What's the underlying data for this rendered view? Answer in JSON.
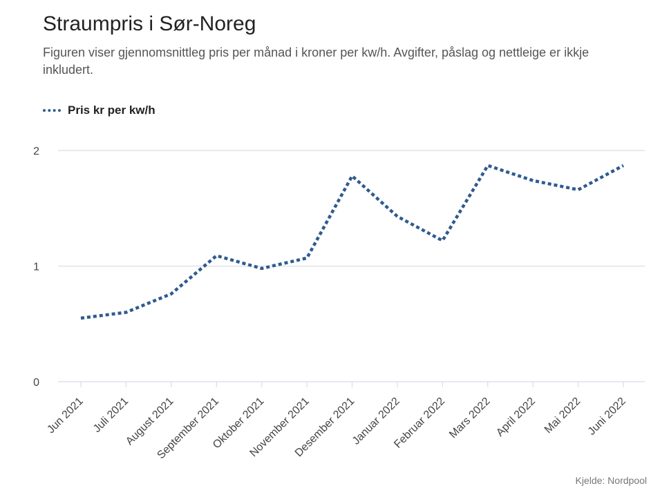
{
  "chart_data": {
    "type": "line",
    "title": "Straumpris i Sør-Noreg",
    "subtitle": "Figuren viser gjennomsnittleg pris per månad i kroner per kw/h. Avgifter, påslag og nettleige er ikkje inkludert.",
    "legend": "Pris kr per kw/h",
    "source": "Kjelde: Nordpool",
    "categories": [
      "Jun 2021",
      "Juli 2021",
      "August 2021",
      "September 2021",
      "Oktober 2021",
      "November 2021",
      "Desember 2021",
      "Januar 2022",
      "Februar 2022",
      "Mars 2022",
      "April 2022",
      "Mai 2022",
      "Juni 2022"
    ],
    "series": [
      {
        "name": "Pris kr per kw/h",
        "values": [
          0.55,
          0.6,
          0.76,
          1.09,
          0.98,
          1.07,
          1.78,
          1.43,
          1.22,
          1.87,
          1.74,
          1.66,
          1.87
        ]
      }
    ],
    "ylim": [
      0,
      2
    ],
    "yticks": [
      "0",
      "1",
      "2"
    ],
    "line_color": "#2f5b8e",
    "grid_color": "#d8dde6"
  }
}
